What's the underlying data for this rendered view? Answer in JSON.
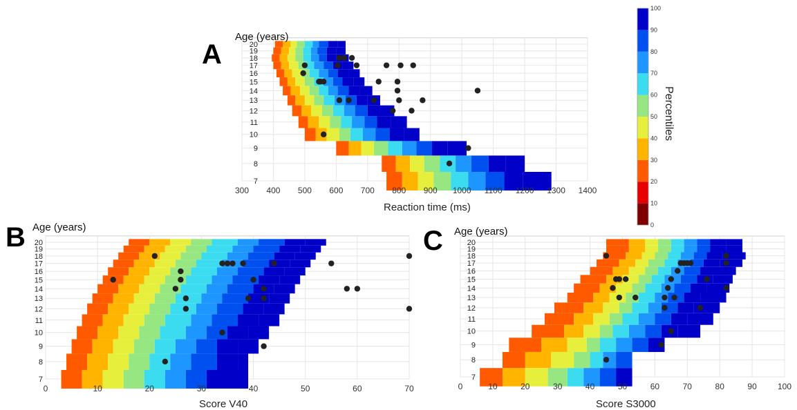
{
  "panels": [
    {
      "letter": "A",
      "ylabel": "Age (years)",
      "xlabel": "Reaction time (ms)",
      "xticks": [
        300,
        400,
        500,
        600,
        700,
        800,
        900,
        1000,
        1100,
        1200,
        1300,
        1400
      ],
      "yticks": [
        7,
        8,
        9,
        10,
        11,
        12,
        13,
        14,
        15,
        16,
        17,
        18,
        19,
        20
      ]
    },
    {
      "letter": "B",
      "ylabel": "Age (years)",
      "xlabel": "Score V40",
      "xticks": [
        0,
        10,
        20,
        30,
        40,
        50,
        60,
        70
      ],
      "yticks": [
        7,
        8,
        9,
        10,
        11,
        12,
        13,
        14,
        15,
        16,
        17,
        18,
        19,
        20
      ]
    },
    {
      "letter": "C",
      "ylabel": "Age (years)",
      "xlabel": "Score S3000",
      "xticks": [
        0,
        10,
        20,
        30,
        40,
        50,
        60,
        70,
        80,
        90,
        100
      ],
      "yticks": [
        7,
        8,
        9,
        10,
        11,
        12,
        13,
        14,
        15,
        16,
        17,
        18,
        19,
        20
      ]
    }
  ],
  "colorbar": {
    "title": "Percentiles",
    "ticks": [
      0,
      10,
      20,
      30,
      40,
      50,
      60,
      70,
      80,
      90,
      100
    ],
    "colors": [
      "#7f0000",
      "#e60000",
      "#ff5a00",
      "#ffb400",
      "#e6f03c",
      "#96e682",
      "#3cdcf0",
      "#1e96ff",
      "#0050f0",
      "#0000c8"
    ]
  },
  "chart_data": [
    {
      "type": "heatmap",
      "title": "",
      "xlabel": "Reaction time (ms)",
      "ylabel": "Age (years)",
      "xlim": [
        300,
        1400
      ],
      "ylim": [
        7,
        20
      ],
      "percentile_bands": [
        10,
        20,
        30,
        40,
        50,
        60,
        70,
        80,
        90,
        100
      ],
      "band_bounds_by_age": [
        {
          "age": 20,
          "bounds": [
            405,
            430,
            455,
            475,
            500,
            525,
            545,
            575,
            605,
            630
          ]
        },
        {
          "age": 19,
          "bounds": [
            400,
            425,
            450,
            470,
            495,
            520,
            540,
            570,
            600,
            630
          ]
        },
        {
          "age": 18,
          "bounds": [
            395,
            420,
            445,
            470,
            495,
            520,
            545,
            570,
            600,
            640
          ]
        },
        {
          "age": 17,
          "bounds": [
            400,
            425,
            450,
            480,
            505,
            530,
            560,
            590,
            620,
            655
          ]
        },
        {
          "age": 16,
          "bounds": [
            410,
            435,
            460,
            490,
            515,
            545,
            575,
            605,
            640,
            675
          ]
        },
        {
          "age": 15,
          "bounds": [
            420,
            445,
            470,
            500,
            530,
            560,
            590,
            620,
            655,
            690
          ]
        },
        {
          "age": 14,
          "bounds": [
            430,
            455,
            485,
            515,
            545,
            575,
            605,
            640,
            675,
            715
          ]
        },
        {
          "age": 13,
          "bounds": [
            445,
            470,
            500,
            530,
            560,
            595,
            630,
            665,
            700,
            740
          ]
        },
        {
          "age": 12,
          "bounds": [
            460,
            490,
            520,
            555,
            590,
            625,
            660,
            700,
            740,
            785
          ]
        },
        {
          "age": 11,
          "bounds": [
            480,
            510,
            545,
            580,
            615,
            650,
            690,
            730,
            775,
            825
          ]
        },
        {
          "age": 10,
          "bounds": [
            500,
            535,
            570,
            610,
            645,
            685,
            725,
            770,
            815,
            865
          ]
        },
        {
          "age": 9,
          "bounds": [
            600,
            640,
            680,
            720,
            765,
            810,
            855,
            905,
            955,
            1015
          ]
        },
        {
          "age": 8,
          "bounds": [
            745,
            790,
            835,
            880,
            930,
            980,
            1030,
            1085,
            1140,
            1200
          ]
        },
        {
          "age": 7,
          "bounds": [
            760,
            810,
            860,
            910,
            965,
            1020,
            1075,
            1135,
            1195,
            1285
          ]
        }
      ],
      "points": [
        [
          500,
          17
        ],
        [
          495,
          16
        ],
        [
          560,
          15
        ],
        [
          550,
          15
        ],
        [
          545,
          15
        ],
        [
          560,
          10
        ],
        [
          605,
          17
        ],
        [
          610,
          18
        ],
        [
          625,
          18
        ],
        [
          650,
          18
        ],
        [
          665,
          17
        ],
        [
          610,
          13
        ],
        [
          640,
          13
        ],
        [
          720,
          13
        ],
        [
          735,
          15
        ],
        [
          760,
          17
        ],
        [
          780,
          12
        ],
        [
          795,
          15
        ],
        [
          795,
          14
        ],
        [
          800,
          13
        ],
        [
          805,
          17
        ],
        [
          845,
          17
        ],
        [
          840,
          12
        ],
        [
          875,
          13
        ],
        [
          1050,
          14
        ],
        [
          1020,
          9
        ],
        [
          960,
          8
        ]
      ]
    },
    {
      "type": "heatmap",
      "title": "",
      "xlabel": "Score V40",
      "ylabel": "Age (years)",
      "xlim": [
        0,
        70
      ],
      "ylim": [
        7,
        20
      ],
      "percentile_bands": [
        10,
        20,
        30,
        40,
        50,
        60,
        70,
        80,
        90,
        100
      ],
      "band_bounds_by_age": [
        {
          "age": 20,
          "bounds": [
            16,
            20,
            24,
            28,
            32,
            37,
            41,
            46,
            50,
            54
          ]
        },
        {
          "age": 19,
          "bounds": [
            15,
            19,
            23,
            27,
            31,
            36,
            40,
            45,
            49,
            53
          ]
        },
        {
          "age": 18,
          "bounds": [
            14,
            18,
            22,
            26,
            30,
            35,
            39,
            44,
            48,
            52
          ]
        },
        {
          "age": 17,
          "bounds": [
            13,
            17,
            21,
            25,
            29,
            34,
            38,
            43,
            47,
            51
          ]
        },
        {
          "age": 16,
          "bounds": [
            12,
            16,
            20,
            24,
            28,
            33,
            37,
            42,
            46,
            50
          ]
        },
        {
          "age": 15,
          "bounds": [
            11,
            15,
            19,
            23,
            27,
            32,
            36,
            41,
            45,
            49
          ]
        },
        {
          "age": 14,
          "bounds": [
            10,
            14,
            18,
            22,
            26,
            31,
            35,
            40,
            44,
            48
          ]
        },
        {
          "age": 13,
          "bounds": [
            9,
            13,
            17,
            21,
            25,
            30,
            34,
            39,
            43,
            47
          ]
        },
        {
          "age": 12,
          "bounds": [
            8,
            12,
            16,
            20,
            24,
            29,
            33,
            38,
            42,
            46
          ]
        },
        {
          "age": 11,
          "bounds": [
            7,
            11,
            15,
            19,
            23,
            28,
            32,
            37,
            41,
            45
          ]
        },
        {
          "age": 10,
          "bounds": [
            6,
            10,
            14,
            18,
            22,
            27,
            31,
            35,
            39,
            43
          ]
        },
        {
          "age": 9,
          "bounds": [
            5,
            9,
            13,
            17,
            21,
            25,
            29,
            33,
            37,
            41
          ]
        },
        {
          "age": 8,
          "bounds": [
            4,
            8,
            12,
            16,
            20,
            24,
            28,
            33,
            37,
            39
          ]
        },
        {
          "age": 7,
          "bounds": [
            3,
            7,
            11,
            15,
            19,
            23,
            27,
            31,
            35,
            39
          ]
        }
      ],
      "points": [
        [
          13,
          15
        ],
        [
          21,
          18
        ],
        [
          25,
          14
        ],
        [
          26,
          15
        ],
        [
          26,
          16
        ],
        [
          27,
          13
        ],
        [
          27,
          12
        ],
        [
          23,
          8
        ],
        [
          34,
          17
        ],
        [
          35,
          17
        ],
        [
          36,
          17
        ],
        [
          38,
          17
        ],
        [
          39,
          13
        ],
        [
          40,
          15
        ],
        [
          42,
          14
        ],
        [
          42,
          13
        ],
        [
          44,
          17
        ],
        [
          34,
          10
        ],
        [
          42,
          9
        ],
        [
          55,
          17
        ],
        [
          58,
          14
        ],
        [
          60,
          14
        ],
        [
          70,
          18
        ],
        [
          70,
          12
        ]
      ]
    },
    {
      "type": "heatmap",
      "title": "",
      "xlabel": "Score S3000",
      "ylabel": "Age (years)",
      "xlim": [
        0,
        100
      ],
      "ylim": [
        7,
        20
      ],
      "percentile_bands": [
        10,
        20,
        30,
        40,
        50,
        60,
        70,
        80,
        90,
        100
      ],
      "band_bounds_by_age": [
        {
          "age": 20,
          "bounds": [
            45,
            52,
            57,
            61,
            65,
            69,
            73,
            77,
            82,
            87
          ]
        },
        {
          "age": 19,
          "bounds": [
            45,
            52,
            57,
            61,
            65,
            69,
            73,
            77,
            82,
            87
          ]
        },
        {
          "age": 18,
          "bounds": [
            44,
            51,
            56,
            60,
            64,
            68,
            72,
            76,
            81,
            88
          ]
        },
        {
          "age": 17,
          "bounds": [
            42,
            49,
            54,
            58,
            63,
            67,
            71,
            75,
            80,
            87
          ]
        },
        {
          "age": 16,
          "bounds": [
            40,
            47,
            52,
            57,
            61,
            65,
            69,
            74,
            79,
            85
          ]
        },
        {
          "age": 15,
          "bounds": [
            37,
            45,
            50,
            55,
            59,
            63,
            68,
            73,
            78,
            84
          ]
        },
        {
          "age": 14,
          "bounds": [
            35,
            43,
            48,
            53,
            57,
            62,
            66,
            71,
            76,
            83
          ]
        },
        {
          "age": 13,
          "bounds": [
            33,
            41,
            46,
            51,
            55,
            60,
            64,
            69,
            74,
            82
          ]
        },
        {
          "age": 12,
          "bounds": [
            29,
            38,
            44,
            49,
            53,
            58,
            62,
            67,
            72,
            80
          ]
        },
        {
          "age": 11,
          "bounds": [
            26,
            35,
            41,
            46,
            50,
            55,
            60,
            65,
            70,
            78
          ]
        },
        {
          "age": 10,
          "bounds": [
            22,
            32,
            38,
            43,
            47,
            52,
            57,
            62,
            67,
            74
          ]
        },
        {
          "age": 9,
          "bounds": [
            15,
            25,
            33,
            39,
            43,
            48,
            53,
            58,
            63,
            63
          ]
        },
        {
          "age": 8,
          "bounds": [
            13,
            20,
            28,
            35,
            40,
            44,
            48,
            53,
            53,
            53
          ]
        },
        {
          "age": 7,
          "bounds": [
            6,
            13,
            20,
            27,
            33,
            38,
            43,
            48,
            53,
            53
          ]
        }
      ],
      "points": [
        [
          45,
          18
        ],
        [
          47,
          14
        ],
        [
          48,
          15
        ],
        [
          49,
          15
        ],
        [
          49,
          13
        ],
        [
          51,
          15
        ],
        [
          54,
          13
        ],
        [
          45,
          8
        ],
        [
          62,
          9
        ],
        [
          63,
          12
        ],
        [
          63,
          13
        ],
        [
          64,
          14
        ],
        [
          65,
          15
        ],
        [
          65,
          10
        ],
        [
          66,
          13
        ],
        [
          67,
          16
        ],
        [
          68,
          17
        ],
        [
          68,
          17
        ],
        [
          69,
          17
        ],
        [
          70,
          17
        ],
        [
          71,
          17
        ],
        [
          74,
          12
        ],
        [
          76,
          15
        ],
        [
          82,
          18
        ],
        [
          82,
          17
        ],
        [
          82,
          14
        ]
      ]
    }
  ]
}
